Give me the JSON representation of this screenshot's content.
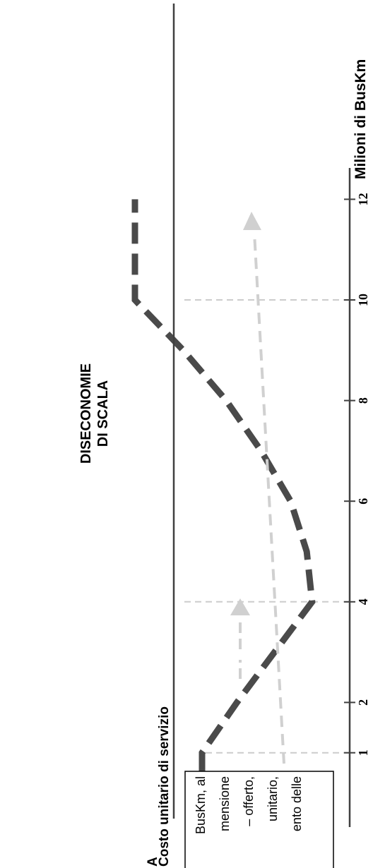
{
  "chart_data": {
    "type": "line",
    "orientation": "rotated-90",
    "title": "",
    "xlabel": "Milioni di BusKm",
    "ylabel": "Costo unitario di servizio",
    "xticks": [
      1,
      2,
      4,
      6,
      8,
      10,
      12
    ],
    "xlim": [
      0,
      12.5
    ],
    "ylim": [
      0,
      1
    ],
    "series": [
      {
        "style": "dashed",
        "color": "#4a4a4a",
        "x": [
          0,
          1,
          2,
          3,
          4,
          5,
          6,
          7,
          8,
          9,
          10,
          11,
          12
        ],
        "y": [
          0.55,
          0.55,
          0.42,
          0.28,
          0.14,
          0.16,
          0.22,
          0.33,
          0.46,
          0.62,
          0.8,
          0.8,
          0.8
        ]
      }
    ],
    "reference_lines_x": [
      1,
      4,
      10
    ],
    "annotations": [
      {
        "text_lines": [
          "DISECONOMIE",
          "DI SCALA"
        ]
      }
    ],
    "callout_box": {
      "heading": "A",
      "lines": [
        "BusKm, al",
        "mensione",
        "– offerto,",
        "unitario,",
        "ento delle"
      ]
    },
    "colors": {
      "axis": "#404040",
      "curve": "#4a4a4a",
      "guide": "#cccccc",
      "arrow": "#d0d0d0",
      "text": "#000000"
    }
  }
}
